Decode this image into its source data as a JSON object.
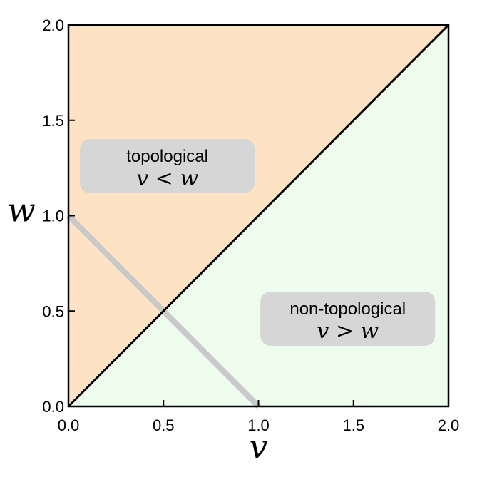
{
  "chart_data": {
    "type": "area",
    "xlabel": "v",
    "ylabel": "w",
    "xlim": [
      0.0,
      2.0
    ],
    "ylim": [
      0.0,
      2.0
    ],
    "xticks": [
      "0.0",
      "0.5",
      "1.0",
      "1.5",
      "2.0"
    ],
    "yticks": [
      "0.0",
      "0.5",
      "1.0",
      "1.5",
      "2.0"
    ],
    "grid": false,
    "regions": [
      {
        "label": "topological",
        "condition": "v < w",
        "color": "#fde3c4",
        "polygon": [
          [
            0,
            0
          ],
          [
            0,
            2
          ],
          [
            2,
            2
          ]
        ]
      },
      {
        "label": "non-topological",
        "condition": "v > w",
        "color": "#edfcec",
        "polygon": [
          [
            0,
            0
          ],
          [
            2,
            0
          ],
          [
            2,
            2
          ]
        ]
      }
    ],
    "series": [
      {
        "x": [
          0.0,
          2.0
        ],
        "y": [
          0.0,
          2.0
        ],
        "color": "#000000"
      },
      {
        "x": [
          0.0,
          1.0
        ],
        "y": [
          1.0,
          0.0
        ],
        "color": "#c9c9c9"
      }
    ],
    "annotations": [
      {
        "title": "topological",
        "math": "v < w",
        "x": 0.52,
        "y": 1.26
      },
      {
        "title": "non-topological",
        "math": "v > w",
        "x": 1.47,
        "y": 0.46
      }
    ]
  },
  "colors": {
    "annotation_box": "#d6d6d6",
    "axis": "#000000"
  }
}
